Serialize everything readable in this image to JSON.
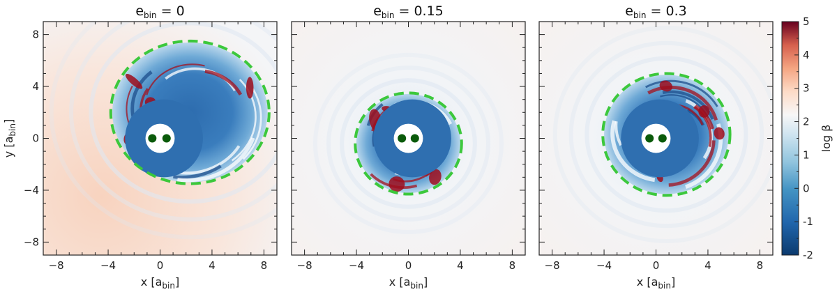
{
  "chart_data": {
    "type": "heatmap",
    "panels": [
      {
        "title_base": "e",
        "title_sub": "bin",
        "title_value": " = 0",
        "xlabel": "x [a",
        "xlabel_sub": "bin",
        "xlabel_close": "]",
        "ylabel": "y [a",
        "ylabel_sub": "bin",
        "ylabel_close": "]",
        "xlim": [
          -9,
          9
        ],
        "ylim": [
          -9,
          9
        ],
        "xticks": [
          -8,
          -4,
          0,
          4,
          8
        ],
        "yticks": [
          -8,
          -4,
          0,
          4,
          8
        ],
        "xtick_labels": [
          "−8",
          "−4",
          "0",
          "4",
          "8"
        ],
        "ytick_labels": [
          "−8",
          "−4",
          "0",
          "4",
          "8"
        ],
        "cavity_ellipse": {
          "cx": 2.3,
          "cy": 2.0,
          "rx": 6.1,
          "ry": 5.5
        },
        "hole_radius": 0.9,
        "binary": [
          {
            "x": -0.6,
            "y": 0
          },
          {
            "x": 0.5,
            "y": 0
          }
        ]
      },
      {
        "title_base": "e",
        "title_sub": "bin",
        "title_value": " = 0.15",
        "xlabel": "x [a",
        "xlabel_sub": "bin",
        "xlabel_close": "]",
        "xlim": [
          -9,
          9
        ],
        "ylim": [
          -9,
          9
        ],
        "xticks": [
          -8,
          -4,
          0,
          4,
          8
        ],
        "yticks": [
          -8,
          -4,
          0,
          4,
          8
        ],
        "xtick_labels": [
          "−8",
          "−4",
          "0",
          "4",
          "8"
        ],
        "cavity_ellipse": {
          "cx": 0.0,
          "cy": -0.4,
          "rx": 4.1,
          "ry": 3.9
        },
        "hole_radius": 0.9,
        "binary": [
          {
            "x": -0.5,
            "y": 0
          },
          {
            "x": 0.5,
            "y": 0
          }
        ]
      },
      {
        "title_base": "e",
        "title_sub": "bin",
        "title_value": " = 0.3",
        "xlabel": "x [a",
        "xlabel_sub": "bin",
        "xlabel_close": "]",
        "xlim": [
          -9,
          9
        ],
        "ylim": [
          -9,
          9
        ],
        "xticks": [
          -8,
          -4,
          0,
          4,
          8
        ],
        "yticks": [
          -8,
          -4,
          0,
          4,
          8
        ],
        "xtick_labels": [
          "−8",
          "−4",
          "0",
          "4",
          "8"
        ],
        "cavity_ellipse": {
          "cx": 0.8,
          "cy": 0.3,
          "rx": 4.9,
          "ry": 4.7
        },
        "hole_radius": 0.9,
        "binary": [
          {
            "x": -0.5,
            "y": 0
          },
          {
            "x": 0.5,
            "y": 0
          }
        ]
      }
    ],
    "colorbar": {
      "label": "log β",
      "range": [
        -2,
        5
      ],
      "ticks": [
        -2,
        -1,
        0,
        1,
        2,
        3,
        4,
        5
      ],
      "tick_labels": [
        "-2",
        "-1",
        "0",
        "1",
        "2",
        "3",
        "4",
        "5"
      ],
      "colormap": "RdBu_r"
    },
    "colors": {
      "cavity_edge": "#3cc83c",
      "binary_star": "#0a5a0a",
      "inner_disk": "#2f6fb0",
      "background_low": "#f3f4f6",
      "background_warm": "#f8d8c8"
    }
  }
}
